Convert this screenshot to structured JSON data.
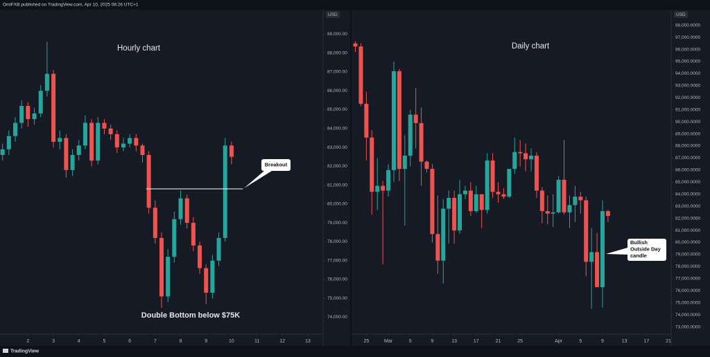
{
  "header": {
    "text": "OmiFXB published on TradingView.com, Apr 10, 2025 08:26 UTC+1"
  },
  "footer": {
    "brand": "TradingView"
  },
  "chart_data": [
    {
      "type": "candlestick",
      "title": "Hourly chart",
      "axis_unit": "USD",
      "annotations": [
        "Double Bottom below $75K"
      ],
      "callout": "Breakout",
      "reference_line": 80800,
      "reference_line_x": [
        6.65,
        10.45
      ],
      "reference_color": "#ffffff",
      "up_color": "#26a69a",
      "down_color": "#ef5350",
      "x": [
        1,
        1.25,
        1.5,
        1.75,
        2,
        2.25,
        2.5,
        2.75,
        3,
        3.25,
        3.5,
        3.75,
        4,
        4.25,
        4.5,
        4.75,
        5,
        5.25,
        5.5,
        5.75,
        6,
        6.25,
        6.5,
        6.75,
        7,
        7.25,
        7.5,
        7.75,
        8,
        8.25,
        8.5,
        8.75,
        9,
        9.25,
        9.5,
        9.75,
        10
      ],
      "open": [
        82600,
        82900,
        83600,
        84300,
        85200,
        84500,
        84800,
        86000,
        86900,
        83300,
        83500,
        81800,
        82600,
        83100,
        84300,
        82300,
        84300,
        84000,
        83700,
        83000,
        83200,
        83500,
        83100,
        82600,
        79800,
        78200,
        75100,
        77200,
        79200,
        80300,
        79000,
        77800,
        76600,
        75300,
        77000,
        78200,
        83100
      ],
      "high": [
        83200,
        83900,
        84600,
        85500,
        85400,
        85100,
        86300,
        88600,
        87100,
        83900,
        83700,
        82900,
        83400,
        84700,
        84500,
        84600,
        84500,
        84200,
        83900,
        83500,
        83700,
        83700,
        83200,
        82800,
        80200,
        78500,
        77600,
        79600,
        80700,
        80500,
        79300,
        78000,
        76800,
        77300,
        78500,
        83500,
        83300
      ],
      "low": [
        82300,
        82600,
        83300,
        84000,
        84100,
        84200,
        84600,
        85700,
        83000,
        82900,
        81400,
        81500,
        82300,
        82900,
        82000,
        82100,
        83700,
        83400,
        82700,
        82800,
        83000,
        82800,
        82200,
        79500,
        77900,
        74500,
        74800,
        76900,
        78900,
        78700,
        77500,
        76300,
        74700,
        75000,
        76700,
        78000,
        82100
      ],
      "close": [
        82900,
        83600,
        84300,
        85200,
        84500,
        84800,
        86000,
        86900,
        83300,
        83500,
        81800,
        82600,
        83100,
        84300,
        82300,
        84300,
        84000,
        83700,
        83000,
        83200,
        83500,
        83100,
        82600,
        79800,
        78200,
        75100,
        77200,
        79200,
        80300,
        79000,
        77800,
        76600,
        75300,
        77000,
        78200,
        83100,
        82500
      ],
      "xlim": [
        0.9,
        13.6
      ],
      "xticks": [
        2,
        3,
        4,
        5,
        6,
        7,
        8,
        9,
        10,
        11,
        12,
        13
      ],
      "ylim": [
        73100,
        90300
      ],
      "yticks": [
        {
          "value": 89000,
          "label": "89,000.00"
        },
        {
          "value": 88000,
          "label": "88,000.00"
        },
        {
          "value": 87000,
          "label": "87,000.00"
        },
        {
          "value": 86000,
          "label": "86,000.00"
        },
        {
          "value": 85000,
          "label": "85,000.00"
        },
        {
          "value": 84000,
          "label": "84,000.00"
        },
        {
          "value": 83000,
          "label": "83,000.00"
        },
        {
          "value": 82000,
          "label": "82,000.00"
        },
        {
          "value": 81000,
          "label": "81,000.00"
        },
        {
          "value": 80000,
          "label": "80,000.00"
        },
        {
          "value": 79000,
          "label": "79,000.00"
        },
        {
          "value": 78000,
          "label": "78,000.00"
        },
        {
          "value": 77000,
          "label": "77,000.00"
        },
        {
          "value": 76000,
          "label": "76,000.00"
        },
        {
          "value": 75000,
          "label": "75,000.00"
        },
        {
          "value": 74000,
          "label": "74,000.00"
        }
      ]
    },
    {
      "type": "candlestick",
      "title": "Daily chart",
      "axis_unit": "USD",
      "callout_lines": [
        "Bullish",
        "Outside Day",
        "candle"
      ],
      "up_color": "#26a69a",
      "down_color": "#ef5350",
      "x": [
        54,
        55,
        56,
        57,
        58,
        59,
        60,
        61,
        62,
        63,
        64,
        65,
        66,
        67,
        68,
        69,
        70,
        71,
        72,
        73,
        74,
        75,
        76,
        77,
        78,
        79,
        80,
        81,
        82,
        83,
        84,
        85,
        86,
        87,
        88,
        89,
        90,
        91,
        92,
        93,
        94,
        95,
        96,
        97,
        98,
        99,
        100
      ],
      "open": [
        96500,
        96250,
        91500,
        88700,
        84200,
        84700,
        84300,
        86000,
        94200,
        86100,
        87200,
        90600,
        89900,
        86700,
        86100,
        80700,
        78500,
        82800,
        83700,
        81000,
        84000,
        84300,
        82600,
        84000,
        82700,
        86800,
        84200,
        84000,
        83800,
        86100,
        87500,
        87400,
        86900,
        87200,
        84300,
        82600,
        82400,
        82500,
        85200,
        82500,
        83100,
        83800,
        83500,
        78400,
        79200,
        76300,
        82600
      ],
      "high": [
        96700,
        96500,
        92500,
        89300,
        87000,
        85100,
        86500,
        95000,
        94400,
        88900,
        91000,
        92800,
        91200,
        86800,
        86500,
        83900,
        83600,
        84300,
        84300,
        85200,
        84700,
        85000,
        84700,
        84000,
        87400,
        87400,
        85000,
        84500,
        86100,
        88700,
        88500,
        88200,
        87800,
        87500,
        84600,
        83900,
        84000,
        85500,
        88500,
        83900,
        84700,
        84200,
        83800,
        81200,
        80800,
        83500,
        82700
      ],
      "low": [
        95800,
        91300,
        86800,
        82300,
        82700,
        78200,
        83800,
        85000,
        85100,
        81400,
        86300,
        87800,
        84700,
        85800,
        80000,
        77400,
        76600,
        79900,
        79900,
        80700,
        83600,
        82200,
        82500,
        81200,
        82400,
        83700,
        83300,
        83600,
        83700,
        85700,
        86300,
        85900,
        85900,
        83700,
        81600,
        81500,
        81300,
        82400,
        82300,
        81200,
        81700,
        82400,
        77200,
        74500,
        76300,
        74600,
        81700
      ],
      "close": [
        96250,
        91500,
        88700,
        84200,
        84700,
        84300,
        86000,
        94200,
        86100,
        87200,
        90600,
        89900,
        86700,
        86100,
        80700,
        78500,
        82800,
        83700,
        81000,
        84000,
        84300,
        82600,
        84000,
        82700,
        86800,
        84200,
        84000,
        83800,
        86100,
        87500,
        87400,
        86900,
        87200,
        84300,
        82600,
        82400,
        82500,
        85200,
        82500,
        83100,
        83800,
        83500,
        78400,
        79200,
        76300,
        82600,
        82200
      ],
      "xlim": [
        53.3,
        111.5
      ],
      "xticks": [
        {
          "value": 56,
          "label": "25"
        },
        {
          "value": 60,
          "label": "Mar"
        },
        {
          "value": 64,
          "label": "5"
        },
        {
          "value": 68,
          "label": "9"
        },
        {
          "value": 72,
          "label": "13"
        },
        {
          "value": 76,
          "label": "17"
        },
        {
          "value": 80,
          "label": "21"
        },
        {
          "value": 84,
          "label": "25"
        },
        {
          "value": 91,
          "label": "Apr"
        },
        {
          "value": 95,
          "label": "5"
        },
        {
          "value": 99,
          "label": "9"
        },
        {
          "value": 103,
          "label": "13"
        },
        {
          "value": 107,
          "label": "17"
        },
        {
          "value": 111,
          "label": "21"
        }
      ],
      "ylim": [
        72400,
        99300
      ],
      "yticks": [
        {
          "value": 98000,
          "label": "98,000.0000"
        },
        {
          "value": 97000,
          "label": "97,000.0000"
        },
        {
          "value": 96000,
          "label": "96,000.0000"
        },
        {
          "value": 95000,
          "label": "95,000.0000"
        },
        {
          "value": 94000,
          "label": "94,000.0000"
        },
        {
          "value": 93000,
          "label": "93,000.0000"
        },
        {
          "value": 92000,
          "label": "92,000.0000"
        },
        {
          "value": 91000,
          "label": "91,000.0000"
        },
        {
          "value": 90000,
          "label": "90,000.0000"
        },
        {
          "value": 89000,
          "label": "89,000.0000"
        },
        {
          "value": 88000,
          "label": "88,000.0000"
        },
        {
          "value": 87000,
          "label": "87,000.0000"
        },
        {
          "value": 86000,
          "label": "86,000.0000"
        },
        {
          "value": 85000,
          "label": "85,000.0000"
        },
        {
          "value": 84000,
          "label": "84,000.0000"
        },
        {
          "value": 83000,
          "label": "83,000.0000"
        },
        {
          "value": 82000,
          "label": "82,000.0000"
        },
        {
          "value": 81000,
          "label": "81,000.0000"
        },
        {
          "value": 80000,
          "label": "80,000.0000"
        },
        {
          "value": 79000,
          "label": "79,000.0000"
        },
        {
          "value": 78000,
          "label": "78,000.0000"
        },
        {
          "value": 77000,
          "label": "77,000.0000"
        },
        {
          "value": 76000,
          "label": "76,000.0000"
        },
        {
          "value": 75000,
          "label": "75,000.0000"
        },
        {
          "value": 74000,
          "label": "74,000.0000"
        },
        {
          "value": 73000,
          "label": "73,000.0000"
        }
      ]
    }
  ]
}
